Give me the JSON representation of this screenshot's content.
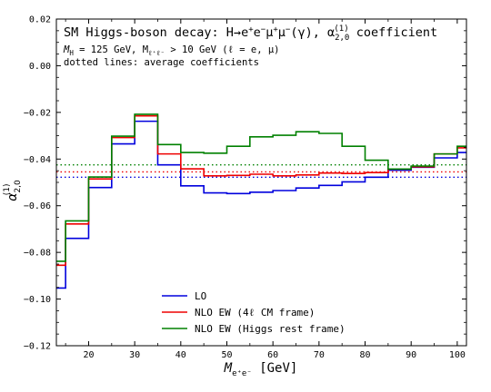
{
  "chart_data": {
    "type": "line",
    "style": "step-histogram",
    "title_parts": {
      "pre": "SM Higgs-boson decay: H→e",
      "sup1": "+",
      "mid1": "e",
      "sup2": "−",
      "mid2": "μ",
      "sup3": "+",
      "mid3": "μ",
      "sup4": "−",
      "mid4": "(γ),  α",
      "sub5": "2,0",
      "sup5": "(1)",
      "post": " coefficient"
    },
    "subtitle_line1": "M_H = 125 GeV,  M_l+l- > 10 GeV  (l = e, μ)",
    "subtitle_line1_parts": {
      "a": "M",
      "a_sub": "H",
      "b": " = 125 GeV,  M",
      "b_sub": "ℓ⁺ℓ⁻",
      "c": " > 10 GeV  (ℓ = e, μ)"
    },
    "subtitle_line2": "dotted lines: average coefficients",
    "xlabel_parts": {
      "main": "M",
      "sub": "e⁺e⁻",
      "unit": " [GeV]"
    },
    "ylabel_parts": {
      "main": "α",
      "sub": "2,0",
      "sup": "(1)"
    },
    "xlim": [
      13,
      102
    ],
    "ylim": [
      -0.12,
      0.02
    ],
    "xticks": [
      20,
      30,
      40,
      50,
      60,
      70,
      80,
      90,
      100
    ],
    "yticks": [
      0.02,
      0.0,
      -0.02,
      -0.04,
      -0.06,
      -0.08,
      -0.1,
      -0.12
    ],
    "ytick_labels": [
      "0.02",
      "0.00",
      "−0.02",
      "−0.04",
      "−0.06",
      "−0.08",
      "−0.10",
      "−0.12"
    ],
    "xtick_labels": [
      "20",
      "30",
      "40",
      "50",
      "60",
      "70",
      "80",
      "90",
      "100"
    ],
    "bin_edges": [
      10,
      15,
      20,
      25,
      30,
      35,
      40,
      45,
      50,
      55,
      60,
      65,
      70,
      75,
      80,
      85,
      90,
      95,
      100,
      105
    ],
    "series": [
      {
        "name": "LO",
        "color": "#0000dd",
        "values": [
          -0.0953,
          -0.074,
          -0.0522,
          -0.0335,
          -0.0238,
          -0.0425,
          -0.0515,
          -0.0545,
          -0.0548,
          -0.0542,
          -0.0535,
          -0.0524,
          -0.0513,
          -0.0498,
          -0.0478,
          -0.0448,
          -0.0435,
          -0.0395,
          -0.0372
        ]
      },
      {
        "name": "NLO EW (4ℓ CM frame)",
        "color": "#ee0000",
        "values": [
          -0.0855,
          -0.0678,
          -0.0485,
          -0.0308,
          -0.0215,
          -0.0378,
          -0.0442,
          -0.0472,
          -0.047,
          -0.0465,
          -0.0472,
          -0.0468,
          -0.046,
          -0.0462,
          -0.0458,
          -0.0443,
          -0.0433,
          -0.0378,
          -0.0352
        ]
      },
      {
        "name": "NLO EW (Higgs rest frame)",
        "color": "#008000",
        "values": [
          -0.0838,
          -0.0665,
          -0.0477,
          -0.0302,
          -0.0208,
          -0.0338,
          -0.0372,
          -0.0375,
          -0.0345,
          -0.0305,
          -0.0298,
          -0.0283,
          -0.029,
          -0.0345,
          -0.0405,
          -0.0443,
          -0.043,
          -0.0378,
          -0.0345
        ]
      }
    ],
    "averages": [
      {
        "series": "LO",
        "value": -0.0478
      },
      {
        "series": "NLO EW (4ℓ CM frame)",
        "value": -0.0455
      },
      {
        "series": "NLO EW (Higgs rest frame)",
        "value": -0.0425
      }
    ],
    "legend_placement": "bottom-right",
    "grid": false
  }
}
